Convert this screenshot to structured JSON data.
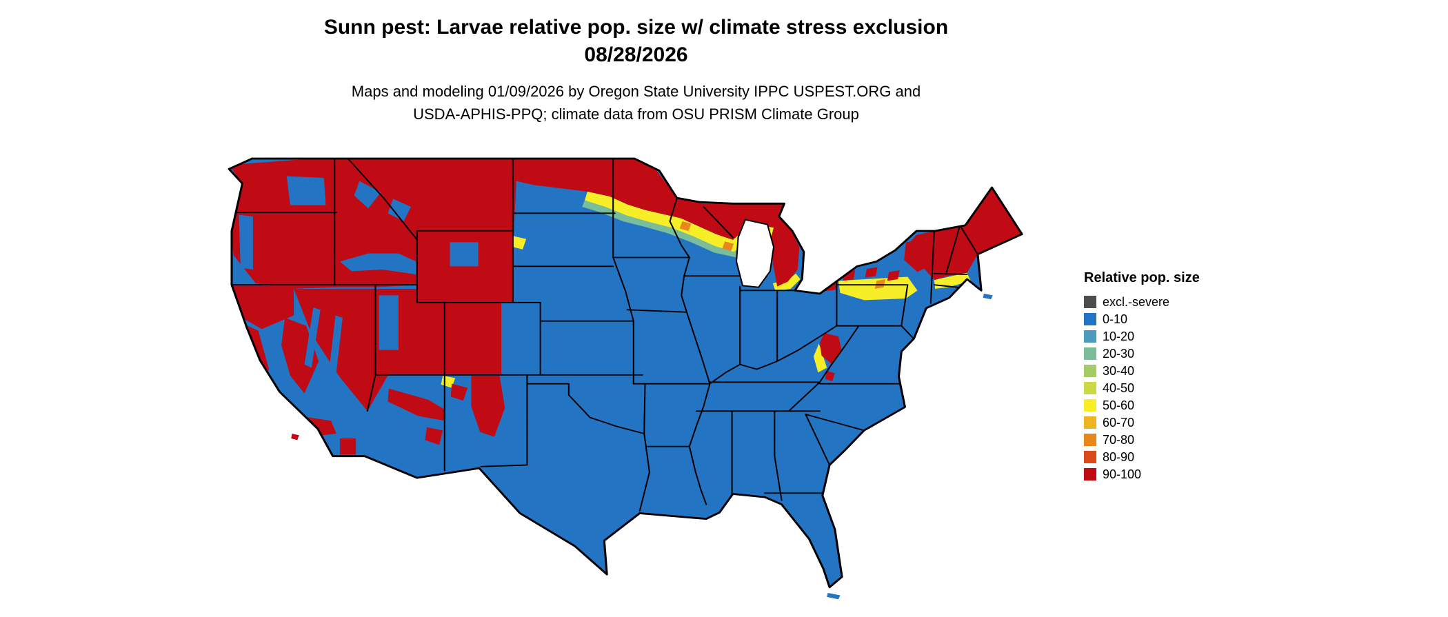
{
  "header": {
    "title_line1": "Sunn pest: Larvae relative pop. size w/ climate stress exclusion",
    "title_line2": "08/28/2026",
    "caption_line1": "Maps and modeling 01/09/2026 by Oregon State University IPPC USPEST.ORG and",
    "caption_line2": "USDA-APHIS-PPQ; climate data from OSU PRISM Climate Group"
  },
  "legend": {
    "title": "Relative pop. size",
    "items": [
      {
        "label": "excl.-severe",
        "color": "#4d4d4d"
      },
      {
        "label": "0-10",
        "color": "#2474c4"
      },
      {
        "label": "10-20",
        "color": "#4a9bbe"
      },
      {
        "label": "20-30",
        "color": "#79bd9a"
      },
      {
        "label": "30-40",
        "color": "#a3cc66"
      },
      {
        "label": "40-50",
        "color": "#cdd944"
      },
      {
        "label": "50-60",
        "color": "#f6ee26"
      },
      {
        "label": "60-70",
        "color": "#f0b322"
      },
      {
        "label": "70-80",
        "color": "#e8871c"
      },
      {
        "label": "80-90",
        "color": "#da4a18"
      },
      {
        "label": "90-100",
        "color": "#c00a14"
      }
    ]
  },
  "map": {
    "region": "Contiguous United States",
    "type": "raster choropleth with state borders",
    "high_values_depicted": "Northern Rockies, Great Basin, Sierra Nevada, northern Great Plains, Upper Midwest, Great Lakes, Appalachian highlands, Northeast",
    "low_values_depicted": "Southeast, southern Great Plains, Texas, Florida, California Central Valley, coastal lowlands",
    "border_color": "#000000",
    "background_color": "#ffffff"
  }
}
